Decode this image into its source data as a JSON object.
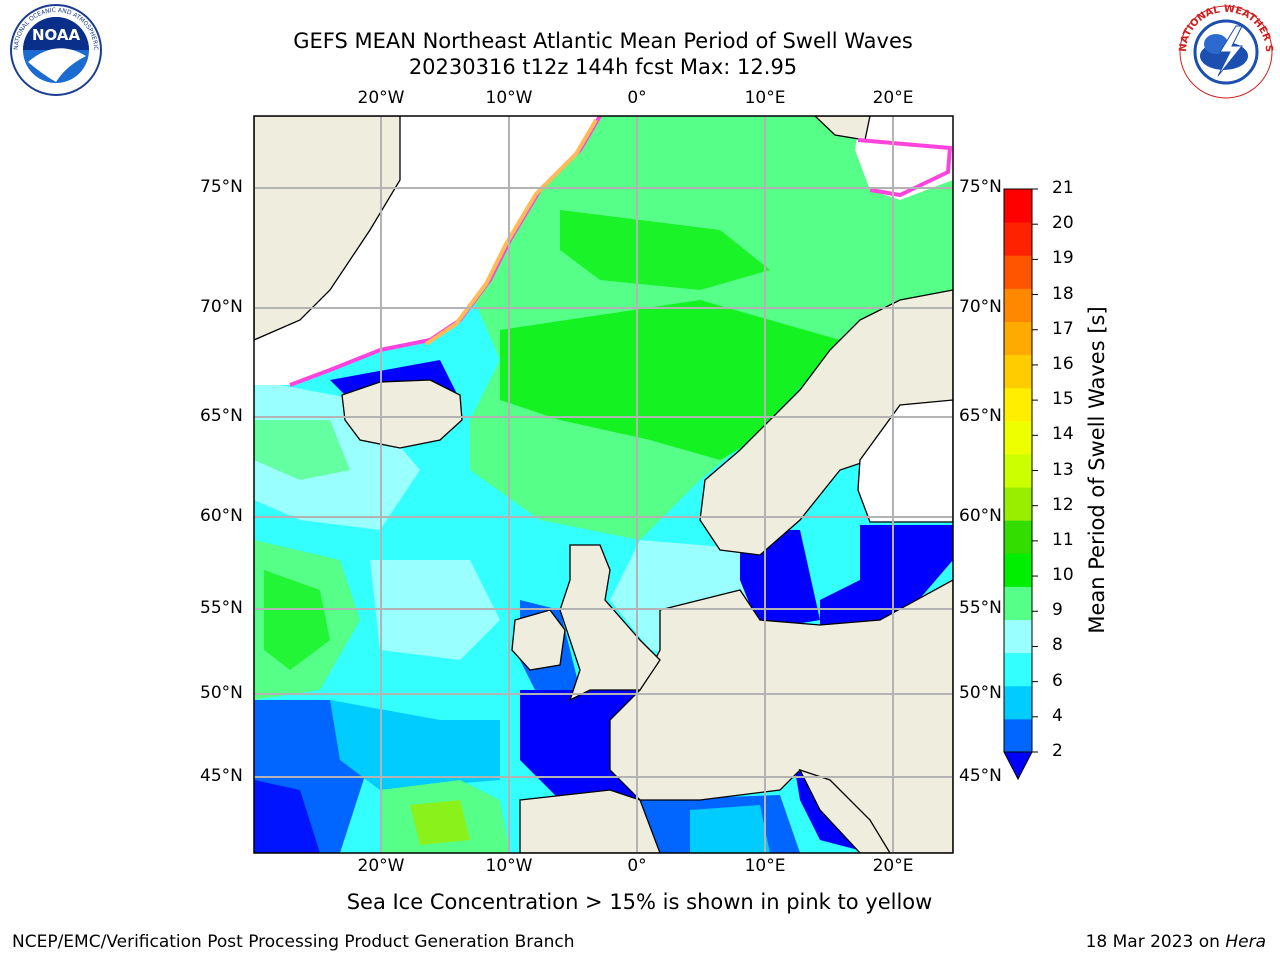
{
  "header": {
    "title_line1": "GEFS MEAN Northeast Atlantic Mean Period of Swell Waves",
    "title_line2": "20230316 t12z 144h fcst   Max: 12.95"
  },
  "logos": {
    "left": {
      "name": "NOAA",
      "text": "NOAA",
      "ring_text": "NATIONAL OCEANIC AND ATMOSPHERIC ADMINISTRATION · U.S. DEPARTMENT OF COMMERCE"
    },
    "right": {
      "name": "National Weather Service",
      "ring_text": "NATIONAL WEATHER SERVICE"
    }
  },
  "map": {
    "region": "Northeast Atlantic",
    "extent": {
      "lon": [
        -30,
        25
      ],
      "lat": [
        41,
        78
      ]
    },
    "lon_ticks": [
      "20°W",
      "10°W",
      "0°",
      "10°E",
      "20°E"
    ],
    "lat_ticks_left": [
      "75°N",
      "70°N",
      "65°N",
      "60°N",
      "55°N",
      "50°N",
      "45°N"
    ],
    "lat_ticks_right": [
      "75°N",
      "70°N",
      "65°N",
      "60°N",
      "55°N",
      "50°N",
      "45°N"
    ],
    "colors": {
      "land": "#efedde",
      "grid": "#b3b3b3",
      "coast": "#000000"
    }
  },
  "colorbar": {
    "label": "Mean Period of Swell Waves [s]",
    "ticks": [
      "2",
      "4",
      "6",
      "8",
      "9",
      "10",
      "11",
      "12",
      "13",
      "14",
      "15",
      "16",
      "17",
      "18",
      "19",
      "20",
      "21"
    ],
    "colors": [
      "#0000ff",
      "#0066ff",
      "#00ccff",
      "#33ffff",
      "#99ffff",
      "#55ff88",
      "#00ee00",
      "#33dd00",
      "#99ee00",
      "#ccff00",
      "#eeff00",
      "#ffee00",
      "#ffcc00",
      "#ffaa00",
      "#ff8800",
      "#ff5500",
      "#ff2200",
      "#ff0000"
    ],
    "extend": "min"
  },
  "note": "Sea Ice Concentration > 15% is shown in pink to yellow",
  "footer": {
    "left": "NCEP/EMC/Verification Post Processing Product Generation Branch",
    "right_date": "18 Mar 2023 on ",
    "right_host": "Hera"
  }
}
